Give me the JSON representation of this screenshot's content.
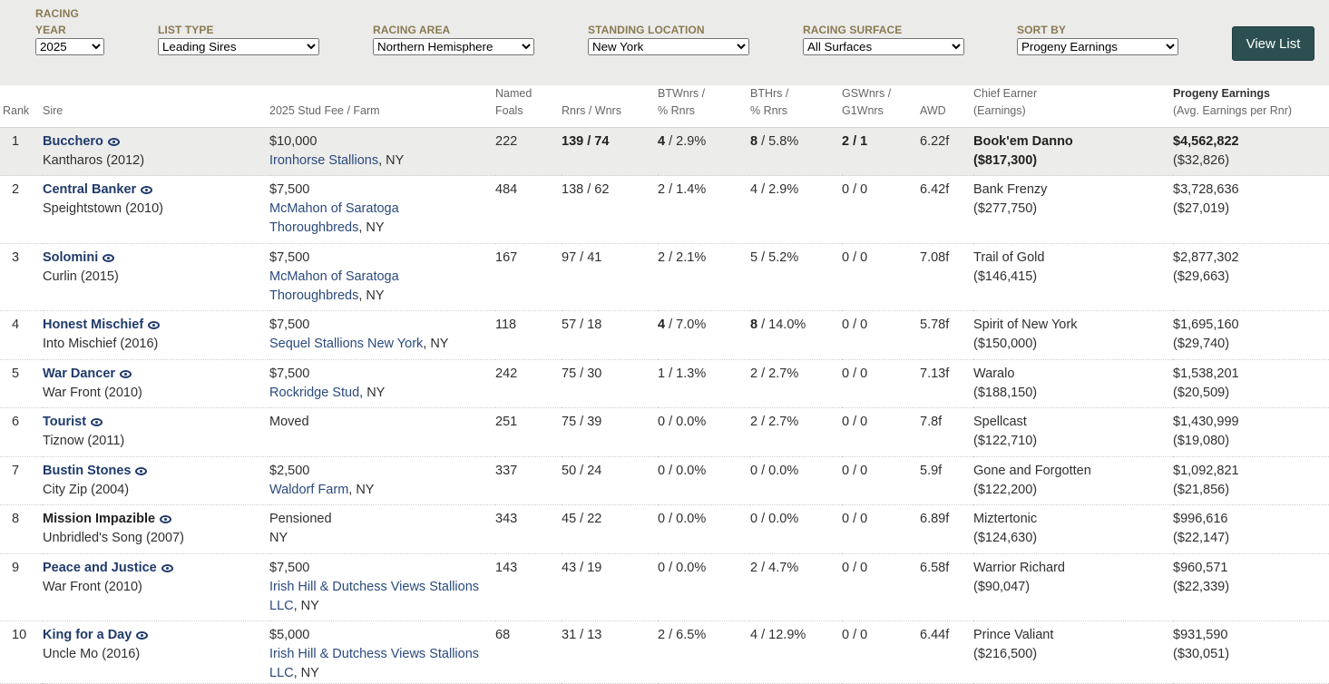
{
  "filters": {
    "racing_year": {
      "label": "Racing Year",
      "value": "2025"
    },
    "list_type": {
      "label": "List Type",
      "value": "Leading Sires"
    },
    "racing_area": {
      "label": "Racing Area",
      "value": "Northern Hemisphere"
    },
    "standing_location": {
      "label": "Standing Location",
      "value": "New York"
    },
    "racing_surface": {
      "label": "Racing Surface",
      "value": "All Surfaces"
    },
    "sort_by": {
      "label": "Sort By",
      "value": "Progeny Earnings"
    },
    "view_button": "View List"
  },
  "headers": {
    "rank": "Rank",
    "sire": "Sire",
    "fee": "2025 Stud Fee / Farm",
    "foals_1": "Named",
    "foals_2": "Foals",
    "rnrs": "Rnrs / Wnrs",
    "btw_1": "BTWnrs /",
    "btw_2": "% Rnrs",
    "bth_1": "BTHrs /",
    "bth_2": "% Rnrs",
    "gsw_1": "GSWnrs /",
    "gsw_2": "G1Wnrs",
    "awd": "AWD",
    "chief_1": "Chief Earner",
    "chief_2": "(Earnings)",
    "earn_1": "Progeny Earnings",
    "earn_2": "(Avg. Earnings per Rnr)"
  },
  "rows": [
    {
      "rank": "1",
      "sire": "Bucchero",
      "sire_of": "Kantharos (2012)",
      "fee": "$10,000",
      "farm_1": "Ironhorse Stallions",
      "farm_2": "",
      "state": ", NY",
      "foals": "222",
      "rnrs": "139",
      "wnrs": "74",
      "btw": "4",
      "btw_pct": "2.9%",
      "bth": "8",
      "bth_pct": "5.8%",
      "gsw": "2",
      "g1w": "1",
      "awd": "6.22f",
      "chief": "Book'em Danno",
      "chief_earn": "($817,300)",
      "earnings": "$4,562,822",
      "avg": "($32,826)"
    },
    {
      "rank": "2",
      "sire": "Central Banker",
      "sire_of": "Speightstown (2010)",
      "fee": "$7,500",
      "farm_1": "McMahon of Saratoga",
      "farm_2": "Thoroughbreds",
      "state": ", NY",
      "foals": "484",
      "rnrs": "138",
      "wnrs": "62",
      "btw": "2",
      "btw_pct": "1.4%",
      "bth": "4",
      "bth_pct": "2.9%",
      "gsw": "0",
      "g1w": "0",
      "awd": "6.42f",
      "chief": "Bank Frenzy",
      "chief_earn": "($277,750)",
      "earnings": "$3,728,636",
      "avg": "($27,019)"
    },
    {
      "rank": "3",
      "sire": "Solomini",
      "sire_of": "Curlin (2015)",
      "fee": "$7,500",
      "farm_1": "McMahon of Saratoga",
      "farm_2": "Thoroughbreds",
      "state": ", NY",
      "foals": "167",
      "rnrs": "97",
      "wnrs": "41",
      "btw": "2",
      "btw_pct": "2.1%",
      "bth": "5",
      "bth_pct": "5.2%",
      "gsw": "0",
      "g1w": "0",
      "awd": "7.08f",
      "chief": "Trail of Gold",
      "chief_earn": "($146,415)",
      "earnings": "$2,877,302",
      "avg": "($29,663)"
    },
    {
      "rank": "4",
      "sire": "Honest Mischief",
      "sire_of": "Into Mischief (2016)",
      "fee": "$7,500",
      "farm_1": "Sequel Stallions New York",
      "farm_2": "",
      "state": ", NY",
      "foals": "118",
      "rnrs": "57",
      "wnrs": "18",
      "btw": "4",
      "btw_pct": "7.0%",
      "bth": "8",
      "bth_pct": "14.0%",
      "gsw": "0",
      "g1w": "0",
      "awd": "5.78f",
      "chief": "Spirit of New York",
      "chief_earn": "($150,000)",
      "earnings": "$1,695,160",
      "avg": "($29,740)"
    },
    {
      "rank": "5",
      "sire": "War Dancer",
      "sire_of": "War Front (2010)",
      "fee": "$7,500",
      "farm_1": "Rockridge Stud",
      "farm_2": "",
      "state": ", NY",
      "foals": "242",
      "rnrs": "75",
      "wnrs": "30",
      "btw": "1",
      "btw_pct": "1.3%",
      "bth": "2",
      "bth_pct": "2.7%",
      "gsw": "0",
      "g1w": "0",
      "awd": "7.13f",
      "chief": "Waralo",
      "chief_earn": "($188,150)",
      "earnings": "$1,538,201",
      "avg": "($20,509)"
    },
    {
      "rank": "6",
      "sire": "Tourist",
      "sire_of": "Tiznow (2011)",
      "fee": "Moved",
      "farm_1": "",
      "farm_2": "",
      "state": "",
      "foals": "251",
      "rnrs": "75",
      "wnrs": "39",
      "btw": "0",
      "btw_pct": "0.0%",
      "bth": "2",
      "bth_pct": "2.7%",
      "gsw": "0",
      "g1w": "0",
      "awd": "7.8f",
      "chief": "Spellcast",
      "chief_earn": "($122,710)",
      "earnings": "$1,430,999",
      "avg": "($19,080)"
    },
    {
      "rank": "7",
      "sire": "Bustin Stones",
      "sire_of": "City Zip (2004)",
      "fee": "$2,500",
      "farm_1": "Waldorf Farm",
      "farm_2": "",
      "state": ", NY",
      "foals": "337",
      "rnrs": "50",
      "wnrs": "24",
      "btw": "0",
      "btw_pct": "0.0%",
      "bth": "0",
      "bth_pct": "0.0%",
      "gsw": "0",
      "g1w": "0",
      "awd": "5.9f",
      "chief": "Gone and Forgotten",
      "chief_earn": "($122,200)",
      "earnings": "$1,092,821",
      "avg": "($21,856)"
    },
    {
      "rank": "8",
      "sire": "Mission Impazible",
      "sire_of": "Unbridled's Song (2007)",
      "fee": "Pensioned",
      "farm_1": "",
      "farm_2": "",
      "state": "NY",
      "foals": "343",
      "rnrs": "45",
      "wnrs": "22",
      "btw": "0",
      "btw_pct": "0.0%",
      "bth": "0",
      "bth_pct": "0.0%",
      "gsw": "0",
      "g1w": "0",
      "awd": "6.89f",
      "chief": "Miztertonic",
      "chief_earn": "($124,630)",
      "earnings": "$996,616",
      "avg": "($22,147)"
    },
    {
      "rank": "9",
      "sire": "Peace and Justice",
      "sire_of": "War Front (2010)",
      "fee": "$7,500",
      "farm_1": "Irish Hill & Dutchess Views Stallions",
      "farm_2": "LLC",
      "state": ", NY",
      "foals": "143",
      "rnrs": "43",
      "wnrs": "19",
      "btw": "0",
      "btw_pct": "0.0%",
      "bth": "2",
      "bth_pct": "4.7%",
      "gsw": "0",
      "g1w": "0",
      "awd": "6.58f",
      "chief": "Warrior Richard",
      "chief_earn": "($90,047)",
      "earnings": "$960,571",
      "avg": "($22,339)"
    },
    {
      "rank": "10",
      "sire": "King for a Day",
      "sire_of": "Uncle Mo (2016)",
      "fee": "$5,000",
      "farm_1": "Irish Hill & Dutchess Views Stallions",
      "farm_2": "LLC",
      "state": ", NY",
      "foals": "68",
      "rnrs": "31",
      "wnrs": "13",
      "btw": "2",
      "btw_pct": "6.5%",
      "bth": "4",
      "bth_pct": "12.9%",
      "gsw": "0",
      "g1w": "0",
      "awd": "6.44f",
      "chief": "Prince Valiant",
      "chief_earn": "($216,500)",
      "earnings": "$931,590",
      "avg": "($30,051)"
    }
  ]
}
